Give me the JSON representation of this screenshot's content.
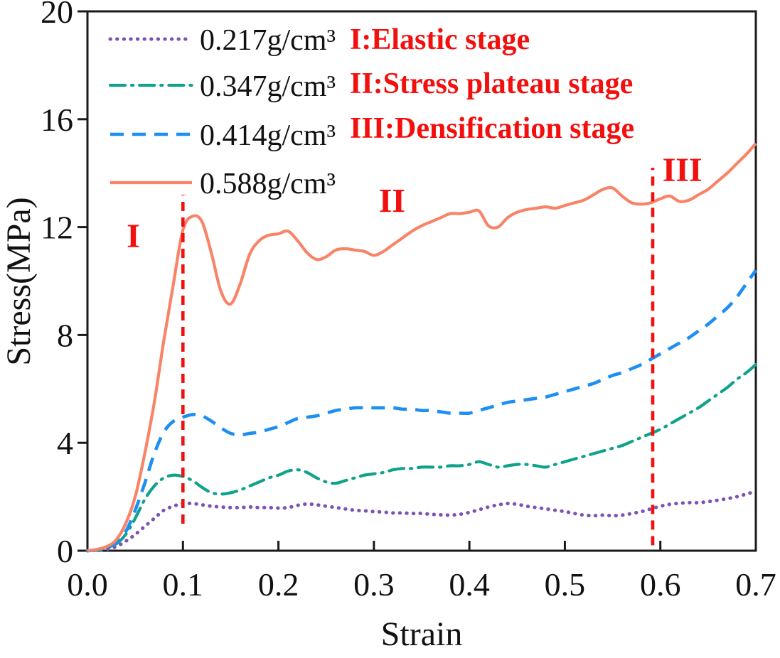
{
  "figure": {
    "background": "#ffffff",
    "axis_color": "#1a1a1a",
    "text_color": "#111111",
    "annotation_color": "#f2100f"
  },
  "chart_data": {
    "type": "line",
    "title": "",
    "xlabel": "Strain",
    "ylabel": "Stress(MPa)",
    "xlim": [
      0.0,
      0.7
    ],
    "ylim": [
      0,
      20
    ],
    "grid": false,
    "legend_position": "upper-left-inside",
    "xticks": {
      "values": [
        0.0,
        0.1,
        0.2,
        0.3,
        0.4,
        0.5,
        0.6,
        0.7
      ],
      "labels": [
        "0.0",
        "0.1",
        "0.2",
        "0.3",
        "0.4",
        "0.5",
        "0.6",
        "0.7"
      ]
    },
    "yticks": {
      "values": [
        0,
        4,
        8,
        12,
        16,
        20
      ],
      "labels": [
        "0",
        "4",
        "8",
        "12",
        "16",
        "20"
      ]
    },
    "x": [
      0,
      0.01,
      0.02,
      0.03,
      0.04,
      0.05,
      0.06,
      0.07,
      0.08,
      0.09,
      0.1,
      0.11,
      0.12,
      0.13,
      0.14,
      0.15,
      0.16,
      0.17,
      0.18,
      0.19,
      0.2,
      0.21,
      0.22,
      0.23,
      0.24,
      0.25,
      0.26,
      0.27,
      0.28,
      0.29,
      0.3,
      0.31,
      0.32,
      0.33,
      0.34,
      0.35,
      0.36,
      0.37,
      0.38,
      0.39,
      0.4,
      0.41,
      0.42,
      0.43,
      0.44,
      0.45,
      0.46,
      0.47,
      0.48,
      0.49,
      0.5,
      0.51,
      0.52,
      0.53,
      0.54,
      0.55,
      0.56,
      0.57,
      0.58,
      0.59,
      0.6,
      0.61,
      0.62,
      0.63,
      0.64,
      0.65,
      0.66,
      0.67,
      0.68,
      0.69,
      0.7
    ],
    "series": [
      {
        "name": "0.217g/cm³",
        "density": "0.217",
        "color": "#7c52b4",
        "line_style": "dotted",
        "values": [
          0,
          0.02,
          0.05,
          0.15,
          0.35,
          0.6,
          0.9,
          1.2,
          1.5,
          1.65,
          1.75,
          1.75,
          1.7,
          1.65,
          1.62,
          1.6,
          1.6,
          1.62,
          1.6,
          1.6,
          1.58,
          1.6,
          1.68,
          1.73,
          1.7,
          1.65,
          1.6,
          1.55,
          1.5,
          1.48,
          1.45,
          1.43,
          1.4,
          1.4,
          1.38,
          1.38,
          1.35,
          1.33,
          1.32,
          1.35,
          1.42,
          1.52,
          1.62,
          1.7,
          1.75,
          1.72,
          1.65,
          1.6,
          1.55,
          1.5,
          1.45,
          1.38,
          1.32,
          1.3,
          1.32,
          1.3,
          1.32,
          1.38,
          1.45,
          1.55,
          1.65,
          1.72,
          1.76,
          1.78,
          1.78,
          1.82,
          1.87,
          1.93,
          2.0,
          2.1,
          2.2
        ]
      },
      {
        "name": "0.347g/cm³",
        "density": "0.347",
        "color": "#0fa28c",
        "line_style": "dashdot",
        "values": [
          0,
          0.03,
          0.1,
          0.25,
          0.6,
          1.2,
          1.9,
          2.4,
          2.7,
          2.8,
          2.75,
          2.6,
          2.35,
          2.15,
          2.1,
          2.15,
          2.25,
          2.4,
          2.55,
          2.7,
          2.8,
          2.95,
          3.0,
          2.9,
          2.7,
          2.55,
          2.5,
          2.6,
          2.7,
          2.8,
          2.85,
          2.9,
          3.0,
          3.05,
          3.05,
          3.1,
          3.1,
          3.1,
          3.15,
          3.15,
          3.2,
          3.3,
          3.2,
          3.1,
          3.15,
          3.2,
          3.2,
          3.15,
          3.1,
          3.2,
          3.3,
          3.4,
          3.5,
          3.6,
          3.7,
          3.8,
          3.9,
          4.05,
          4.2,
          4.35,
          4.5,
          4.7,
          4.9,
          5.1,
          5.3,
          5.55,
          5.8,
          6.05,
          6.35,
          6.6,
          6.9
        ]
      },
      {
        "name": "0.414g/cm³",
        "density": "0.414",
        "color": "#1e8ff2",
        "line_style": "dashed",
        "values": [
          0,
          0.03,
          0.1,
          0.3,
          0.7,
          1.5,
          2.5,
          3.6,
          4.4,
          4.8,
          4.95,
          5.05,
          5.0,
          4.8,
          4.55,
          4.35,
          4.3,
          4.35,
          4.4,
          4.5,
          4.6,
          4.75,
          4.9,
          4.95,
          5.0,
          5.1,
          5.2,
          5.25,
          5.3,
          5.3,
          5.3,
          5.3,
          5.3,
          5.25,
          5.25,
          5.2,
          5.2,
          5.15,
          5.1,
          5.1,
          5.1,
          5.2,
          5.3,
          5.4,
          5.5,
          5.55,
          5.6,
          5.65,
          5.7,
          5.8,
          5.9,
          6.0,
          6.1,
          6.2,
          6.35,
          6.5,
          6.6,
          6.75,
          6.9,
          7.1,
          7.3,
          7.5,
          7.7,
          7.9,
          8.15,
          8.4,
          8.7,
          9.0,
          9.4,
          9.9,
          10.4
        ]
      },
      {
        "name": "0.588g/cm³",
        "density": "0.588",
        "color": "#f98367",
        "line_style": "solid",
        "values": [
          0,
          0.05,
          0.15,
          0.4,
          1.0,
          2.0,
          3.6,
          5.5,
          7.8,
          9.9,
          11.9,
          12.4,
          12.2,
          11.0,
          9.6,
          9.15,
          9.9,
          11.0,
          11.5,
          11.7,
          11.75,
          11.85,
          11.5,
          11.05,
          10.8,
          10.9,
          11.15,
          11.2,
          11.15,
          11.1,
          10.95,
          11.1,
          11.35,
          11.6,
          11.85,
          12.05,
          12.2,
          12.35,
          12.5,
          12.5,
          12.55,
          12.6,
          12.05,
          12.0,
          12.35,
          12.55,
          12.65,
          12.7,
          12.75,
          12.7,
          12.8,
          12.9,
          13.0,
          13.2,
          13.4,
          13.45,
          13.15,
          12.9,
          12.85,
          12.9,
          13.05,
          13.15,
          12.95,
          13.0,
          13.2,
          13.4,
          13.7,
          14.0,
          14.35,
          14.7,
          15.1
        ]
      }
    ],
    "annotations": {
      "color": "#f2100f",
      "stage_legend": [
        "I:Elastic stage",
        "II:Stress plateau stage",
        "III:Densification stage"
      ],
      "numerals": [
        {
          "text": "I",
          "x": 0.048,
          "y": 11.7
        },
        {
          "text": "II",
          "x": 0.319,
          "y": 13.0
        },
        {
          "text": "III",
          "x": 0.623,
          "y": 14.15
        }
      ],
      "vlines": [
        {
          "name": "stage-boundary-1",
          "x": 0.1,
          "y_from": 1.0,
          "y_to": 13.2
        },
        {
          "name": "stage-boundary-2",
          "x": 0.592,
          "y_from": 0.2,
          "y_to": 14.2
        }
      ]
    }
  }
}
